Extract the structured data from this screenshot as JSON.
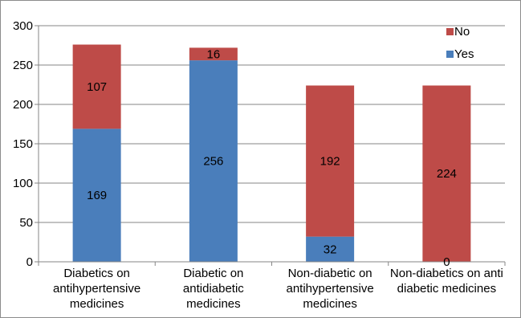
{
  "chart_data": {
    "type": "bar",
    "stacked": true,
    "categories": [
      [
        "Diabetics on",
        "antihypertensive",
        "medicines"
      ],
      [
        "Diabetic on",
        "antidiabetic",
        "medicines"
      ],
      [
        "Non-diabetic on",
        "antihypertensive",
        "medicines"
      ],
      [
        "Non-diabetics on anti",
        "diabetic medicines"
      ]
    ],
    "series": [
      {
        "name": "Yes",
        "color": "#4a7ebb",
        "values": [
          169,
          256,
          32,
          0
        ]
      },
      {
        "name": "No",
        "color": "#be4b48",
        "values": [
          107,
          16,
          192,
          224
        ]
      }
    ],
    "ylim": [
      0,
      300
    ],
    "yticks": [
      0,
      50,
      100,
      150,
      200,
      250,
      300
    ],
    "grid": true,
    "legend": "top-right",
    "legend_order": [
      "No",
      "Yes"
    ],
    "data_labels": true,
    "title": "",
    "xlabel": "",
    "ylabel": ""
  }
}
